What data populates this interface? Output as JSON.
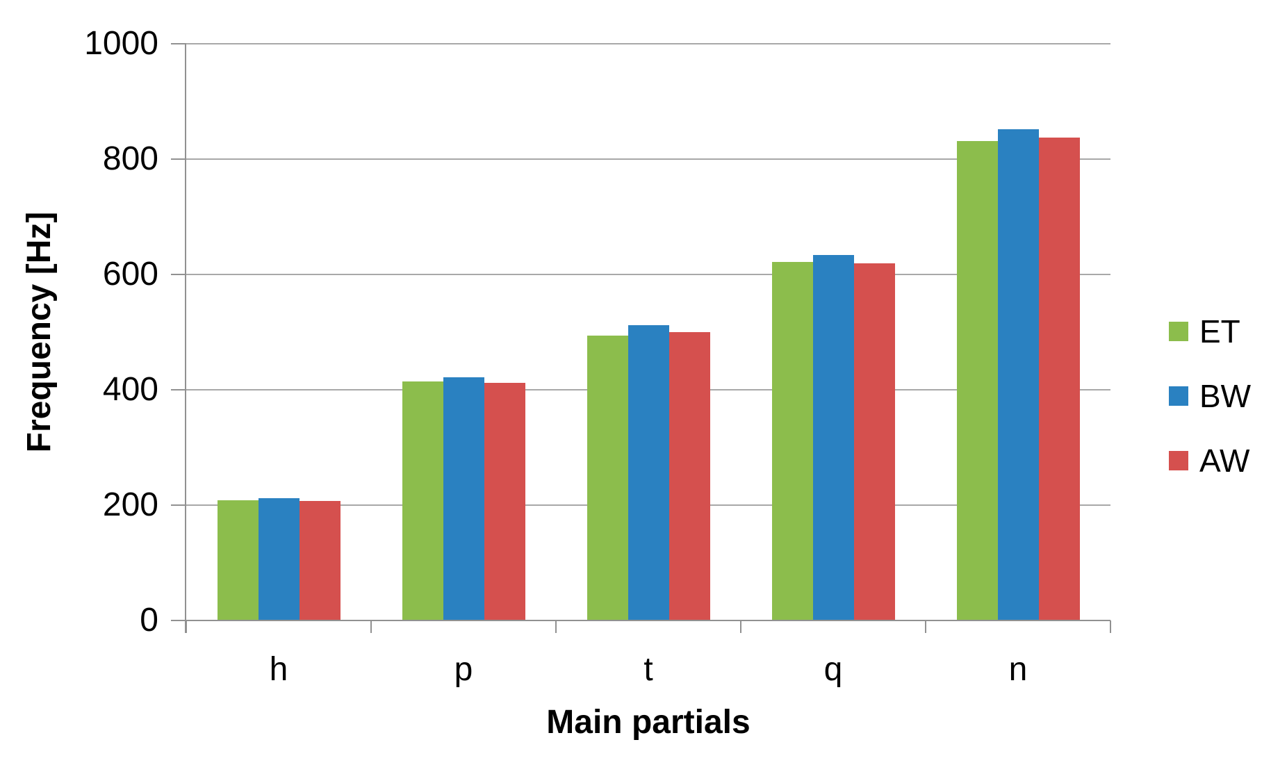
{
  "chart_data": {
    "type": "bar",
    "title": "",
    "xlabel": "Main partials",
    "ylabel": "Frequency [Hz]",
    "categories": [
      "h",
      "p",
      "t",
      "q",
      "n"
    ],
    "series": [
      {
        "name": "ET",
        "color": "#8CBD4C",
        "values": [
          208,
          415,
          494,
          622,
          831
        ]
      },
      {
        "name": "BW",
        "color": "#2A81C1",
        "values": [
          212,
          422,
          512,
          634,
          852
        ]
      },
      {
        "name": "AW",
        "color": "#D5504E",
        "values": [
          207,
          412,
          500,
          619,
          837
        ]
      }
    ],
    "ylim": [
      0,
      1000
    ],
    "yticks": [
      0,
      200,
      400,
      600,
      800,
      1000
    ],
    "grid": true,
    "legend_position": "right",
    "bar_gap_ratio": 1.5
  },
  "colors": {
    "background": "#FFFFFF",
    "gridline": "#A8A8A8",
    "axis": "#919191",
    "text": "#000000"
  }
}
